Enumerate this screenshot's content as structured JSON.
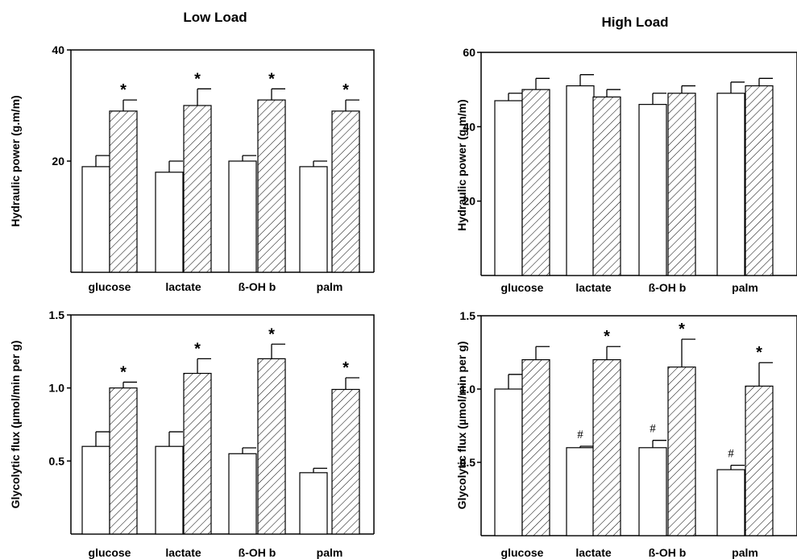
{
  "titles": {
    "left": "Low Load",
    "right": "High Load"
  },
  "chart_data": [
    {
      "type": "bar",
      "ylabel": "Hydraulic power (g.m/m)",
      "categories": [
        "glucose",
        "lactate",
        "ß-OH b",
        "palm"
      ],
      "ylim": [
        0,
        40
      ],
      "yticks": [
        "20",
        "40"
      ],
      "series": [
        {
          "values": [
            19,
            18,
            20,
            19
          ],
          "errors": [
            2,
            2,
            1,
            1
          ],
          "pattern": "open"
        },
        {
          "values": [
            29,
            30,
            31,
            29
          ],
          "errors": [
            2,
            3,
            2,
            2
          ],
          "pattern": "hatched"
        }
      ],
      "annotations": [
        {
          "category": 0,
          "series": 1,
          "mark": "*"
        },
        {
          "category": 1,
          "series": 1,
          "mark": "*"
        },
        {
          "category": 2,
          "series": 1,
          "mark": "*"
        },
        {
          "category": 3,
          "series": 1,
          "mark": "*"
        }
      ]
    },
    {
      "type": "bar",
      "ylabel": "Hydraulic power (g.m/m)",
      "categories": [
        "glucose",
        "lactate",
        "ß-OH b",
        "palm"
      ],
      "ylim": [
        0,
        60
      ],
      "yticks": [
        "20",
        "40",
        "60"
      ],
      "series": [
        {
          "values": [
            47,
            51,
            46,
            49
          ],
          "errors": [
            2,
            3,
            3,
            3
          ],
          "pattern": "open"
        },
        {
          "values": [
            50,
            48,
            49,
            51
          ],
          "errors": [
            3,
            2,
            2,
            2
          ],
          "pattern": "hatched"
        }
      ],
      "annotations": []
    },
    {
      "type": "bar",
      "ylabel": "Glycolytic flux (µmol/min per g)",
      "categories": [
        "glucose",
        "lactate",
        "ß-OH b",
        "palm"
      ],
      "ylim": [
        0,
        1.5
      ],
      "yticks": [
        "0.5",
        "1.0",
        "1.5"
      ],
      "series": [
        {
          "values": [
            0.6,
            0.6,
            0.55,
            0.42
          ],
          "errors": [
            0.1,
            0.1,
            0.04,
            0.03
          ],
          "pattern": "open"
        },
        {
          "values": [
            1.0,
            1.1,
            1.2,
            0.99
          ],
          "errors": [
            0.04,
            0.1,
            0.1,
            0.08
          ],
          "pattern": "hatched"
        }
      ],
      "annotations": [
        {
          "category": 0,
          "series": 1,
          "mark": "*"
        },
        {
          "category": 1,
          "series": 1,
          "mark": "*"
        },
        {
          "category": 2,
          "series": 1,
          "mark": "*"
        },
        {
          "category": 3,
          "series": 1,
          "mark": "*"
        }
      ]
    },
    {
      "type": "bar",
      "ylabel": "Glycolytic flux (µmol/min per g)",
      "categories": [
        "glucose",
        "lactate",
        "ß-OH b",
        "palm"
      ],
      "ylim": [
        0,
        1.5
      ],
      "yticks": [
        "0.5",
        "1.0",
        "1.5"
      ],
      "series": [
        {
          "values": [
            1.0,
            0.6,
            0.6,
            0.45
          ],
          "errors": [
            0.1,
            0.01,
            0.05,
            0.03
          ],
          "pattern": "open"
        },
        {
          "values": [
            1.2,
            1.2,
            1.15,
            1.02
          ],
          "errors": [
            0.09,
            0.09,
            0.19,
            0.16
          ],
          "pattern": "hatched"
        }
      ],
      "annotations": [
        {
          "category": 1,
          "series": 0,
          "mark": "#"
        },
        {
          "category": 2,
          "series": 0,
          "mark": "#"
        },
        {
          "category": 3,
          "series": 0,
          "mark": "#"
        },
        {
          "category": 1,
          "series": 1,
          "mark": "*"
        },
        {
          "category": 2,
          "series": 1,
          "mark": "*"
        },
        {
          "category": 3,
          "series": 1,
          "mark": "*"
        }
      ]
    }
  ]
}
